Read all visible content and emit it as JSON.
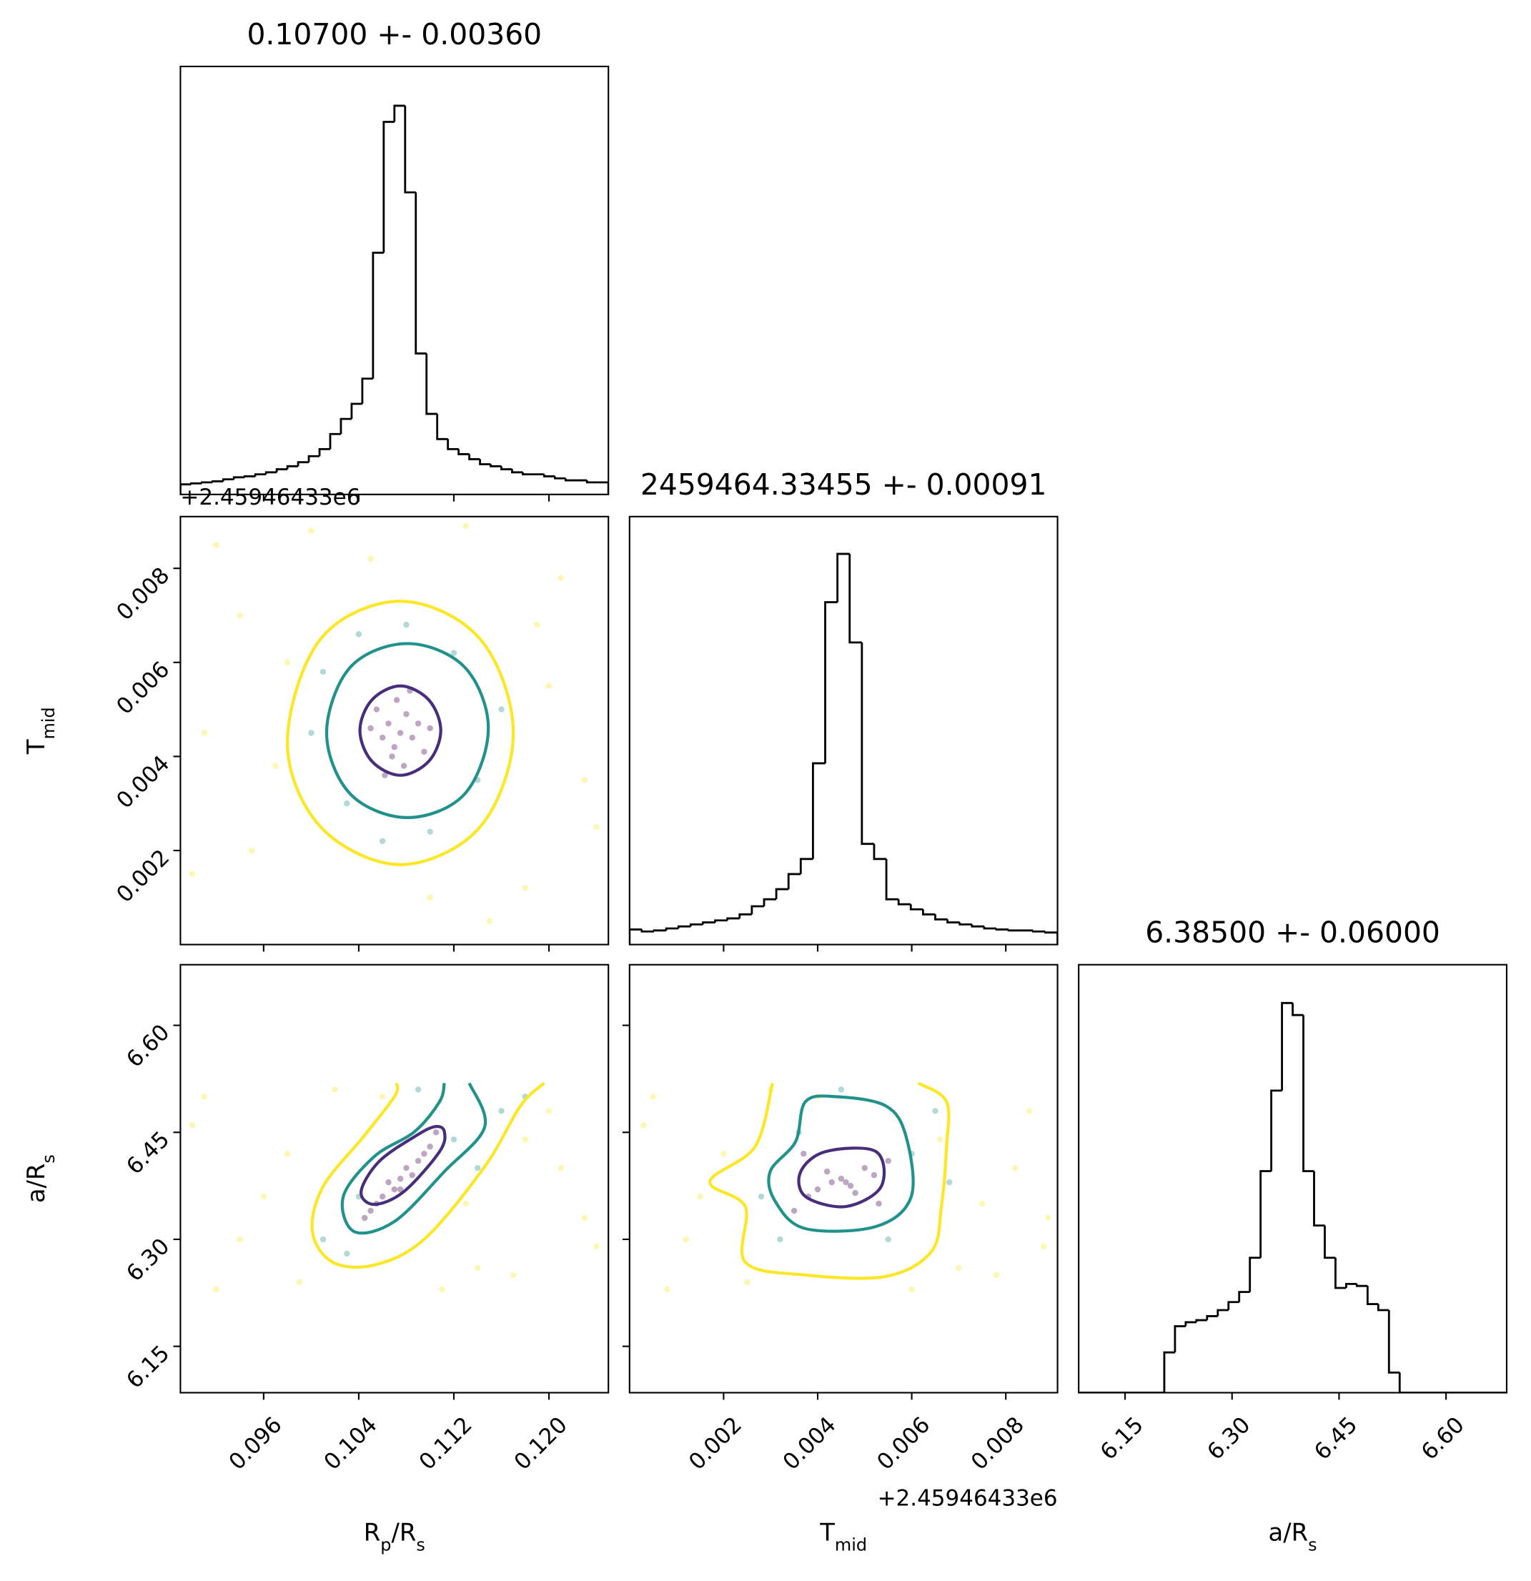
{
  "chart_data": [
    {
      "type": "histogram",
      "title": "0.10700 +- 0.00360",
      "color": "#000000",
      "bins": [
        0.089,
        0.0899,
        0.0908,
        0.0917,
        0.0926,
        0.0935,
        0.0944,
        0.0953,
        0.0962,
        0.0971,
        0.098,
        0.0989,
        0.0998,
        0.1007,
        0.1016,
        0.1025,
        0.1034,
        0.1043,
        0.1052,
        0.1061,
        0.107,
        0.1079,
        0.1088,
        0.1097,
        0.1106,
        0.1115,
        0.1124,
        0.1133,
        0.1142,
        0.1151,
        0.116,
        0.1169,
        0.1178,
        0.1187,
        0.1196,
        0.1205,
        0.1214,
        0.1223,
        0.1232,
        0.1241,
        0.125
      ],
      "values": [
        10,
        11,
        12,
        13,
        15,
        17,
        18,
        20,
        22,
        25,
        28,
        32,
        38,
        45,
        60,
        75,
        90,
        115,
        240,
        370,
        386,
        300,
        140,
        80,
        55,
        45,
        40,
        35,
        30,
        28,
        25,
        22,
        20,
        20,
        18,
        16,
        14,
        14,
        12,
        12
      ],
      "xlim": [
        0.089,
        0.125
      ],
      "ylim": [
        0,
        425
      ],
      "xticks": [
        0.096,
        0.104,
        0.112,
        0.12
      ],
      "xticklabels": false
    },
    {
      "type": "scatter",
      "color_levels": true,
      "xlim": [
        0.089,
        0.125
      ],
      "ylim": [
        0,
        0.0091
      ],
      "xticks": [
        0.096,
        0.104,
        0.112,
        0.12
      ],
      "xticklabels": false,
      "yticks": [
        0.002,
        0.004,
        0.006,
        0.008
      ],
      "yticklabels": true,
      "ylabel": [
        {
          "t": "T"
        },
        {
          "t": "mid",
          "sub": true
        }
      ],
      "y_offset_text": "+2.45946433e6",
      "series": [
        {
          "color": "#fde725",
          "x": [
            0.092,
            0.095,
            0.098,
            0.121,
            0.123,
            0.118,
            0.091,
            0.1,
            0.115,
            0.12,
            0.094,
            0.11,
            0.105,
            0.124,
            0.097,
            0.113,
            0.09,
            0.119
          ],
          "y": [
            0.0085,
            0.002,
            0.006,
            0.0078,
            0.0035,
            0.0012,
            0.0045,
            0.0088,
            0.0005,
            0.0055,
            0.007,
            0.001,
            0.0082,
            0.0025,
            0.0038,
            0.0089,
            0.0015,
            0.0068
          ]
        },
        {
          "color": "#21918c",
          "x": [
            0.101,
            0.103,
            0.112,
            0.114,
            0.108,
            0.106,
            0.1,
            0.116,
            0.11,
            0.104
          ],
          "y": [
            0.0058,
            0.003,
            0.0062,
            0.0035,
            0.0068,
            0.0022,
            0.0045,
            0.005,
            0.0024,
            0.0066
          ]
        },
        {
          "color": "#440154",
          "x": [
            0.1075,
            0.1065,
            0.1085,
            0.107,
            0.108,
            0.106,
            0.109,
            0.1055,
            0.1095,
            0.1072,
            0.1078,
            0.1068,
            0.1083,
            0.105,
            0.11,
            0.1062
          ],
          "y": [
            0.0045,
            0.0047,
            0.0044,
            0.0042,
            0.0049,
            0.0044,
            0.0047,
            0.005,
            0.0041,
            0.0052,
            0.0038,
            0.004,
            0.0054,
            0.0046,
            0.0046,
            0.0036
          ]
        }
      ],
      "contours": [
        {
          "color": "#fde725",
          "closed": true,
          "x": [
            0.117,
            0.1142,
            0.1075,
            0.1008,
            0.098,
            0.1008,
            0.1075,
            0.1142
          ],
          "y": [
            0.0045,
            0.0065,
            0.0073,
            0.0065,
            0.0043,
            0.0025,
            0.0017,
            0.0025
          ]
        },
        {
          "color": "#21918c",
          "closed": true,
          "x": [
            0.1149,
            0.1129,
            0.1081,
            0.1033,
            0.1013,
            0.1033,
            0.1081,
            0.1129
          ],
          "y": [
            0.0046,
            0.0059,
            0.0064,
            0.0059,
            0.0045,
            0.0032,
            0.0027,
            0.0032
          ]
        },
        {
          "color": "#472d7b",
          "closed": true,
          "x": [
            0.1109,
            0.1099,
            0.1075,
            0.1051,
            0.1041,
            0.1051,
            0.1075,
            0.1099
          ],
          "y": [
            0.00455,
            0.0052,
            0.0055,
            0.0052,
            0.00455,
            0.0039,
            0.0036,
            0.0039
          ]
        }
      ]
    },
    {
      "type": "histogram",
      "title": "2459464.33455 +- 0.00091",
      "color": "#000000",
      "bins": [
        0,
        0.00026,
        0.00052,
        0.00078,
        0.00104,
        0.0013,
        0.00156,
        0.00182,
        0.00208,
        0.00234,
        0.0026,
        0.00286,
        0.00312,
        0.00338,
        0.00364,
        0.0039,
        0.00416,
        0.00442,
        0.00468,
        0.00494,
        0.0052,
        0.00546,
        0.00572,
        0.00598,
        0.00624,
        0.0065,
        0.00676,
        0.00702,
        0.00728,
        0.00754,
        0.0078,
        0.00806,
        0.00832,
        0.00858,
        0.00884,
        0.0091
      ],
      "values": [
        15,
        13,
        14,
        16,
        18,
        20,
        22,
        24,
        26,
        30,
        38,
        45,
        55,
        70,
        85,
        180,
        340,
        388,
        300,
        100,
        85,
        45,
        40,
        35,
        30,
        25,
        22,
        20,
        18,
        16,
        15,
        14,
        14,
        13,
        12
      ],
      "xlim": [
        0,
        0.0091
      ],
      "ylim": [
        0,
        425
      ],
      "xticks": [
        0.002,
        0.004,
        0.006,
        0.008
      ],
      "xticklabels": false
    },
    {
      "type": "scatter",
      "xlim": [
        0.089,
        0.125
      ],
      "ylim": [
        6.085,
        6.685
      ],
      "xticks": [
        0.096,
        0.104,
        0.112,
        {
          "value": 0.12,
          "label": "0.120"
        }
      ],
      "xticklabels": true,
      "yticks": [
        6.15,
        {
          "value": 6.3,
          "label": "6.30"
        },
        6.45,
        {
          "value": 6.6,
          "label": "6.60"
        }
      ],
      "yticklabels": true,
      "xlabel": [
        {
          "t": "R"
        },
        {
          "t": "p",
          "sub": true
        },
        {
          "t": "/R"
        },
        {
          "t": "s",
          "sub": true
        }
      ],
      "ylabel": [
        {
          "t": "a/R"
        },
        {
          "t": "s",
          "sub": true
        }
      ],
      "series": [
        {
          "color": "#fde725",
          "x": [
            0.091,
            0.094,
            0.098,
            0.12,
            0.123,
            0.117,
            0.092,
            0.102,
            0.114,
            0.121,
            0.096,
            0.111,
            0.106,
            0.124,
            0.099,
            0.113,
            0.09,
            0.118
          ],
          "y": [
            6.5,
            6.3,
            6.42,
            6.48,
            6.33,
            6.25,
            6.23,
            6.51,
            6.26,
            6.4,
            6.36,
            6.23,
            6.5,
            6.29,
            6.24,
            6.35,
            6.46,
            6.44
          ]
        },
        {
          "color": "#21918c",
          "x": [
            0.104,
            0.116,
            0.112,
            0.101,
            0.109,
            0.114,
            0.103,
            0.118
          ],
          "y": [
            6.36,
            6.48,
            6.44,
            6.3,
            6.51,
            6.4,
            6.28,
            6.5
          ]
        },
        {
          "color": "#440154",
          "x": [
            0.1075,
            0.106,
            0.109,
            0.105,
            0.11,
            0.107,
            0.108,
            0.1045,
            0.1105,
            0.1065,
            0.1085,
            0.1055,
            0.1095,
            0.1075
          ],
          "y": [
            6.385,
            6.36,
            6.41,
            6.34,
            6.43,
            6.37,
            6.4,
            6.33,
            6.45,
            6.38,
            6.39,
            6.35,
            6.42,
            6.37
          ]
        }
      ],
      "contours": [
        {
          "color": "#fde725",
          "closed": false,
          "x": [
            0.1196,
            0.1176,
            0.1146,
            0.1095,
            0.1053,
            0.1018,
            0.1001,
            0.101,
            0.1044,
            0.107,
            0.1072
          ],
          "y": [
            6.519,
            6.487,
            6.402,
            6.3,
            6.264,
            6.268,
            6.311,
            6.374,
            6.444,
            6.5,
            6.519
          ]
        },
        {
          "color": "#21918c",
          "closed": false,
          "x": [
            0.1133,
            0.1146,
            0.1112,
            0.107,
            0.1036,
            0.1027,
            0.1053,
            0.1087,
            0.1108,
            0.1112
          ],
          "y": [
            6.519,
            6.458,
            6.395,
            6.325,
            6.311,
            6.36,
            6.416,
            6.451,
            6.493,
            6.519
          ]
        },
        {
          "color": "#472d7b",
          "closed": true,
          "x": [
            0.1112,
            0.1108,
            0.1078,
            0.1053,
            0.1042,
            0.1057,
            0.1087,
            0.1104
          ],
          "y": [
            6.451,
            6.423,
            6.367,
            6.349,
            6.367,
            6.409,
            6.444,
            6.458
          ]
        }
      ]
    },
    {
      "type": "scatter",
      "xlim": [
        0,
        0.0091
      ],
      "ylim": [
        6.085,
        6.685
      ],
      "xticks": [
        0.002,
        0.004,
        0.006,
        0.008
      ],
      "xticklabels": true,
      "yticks": [
        6.15,
        6.3,
        6.45,
        6.6
      ],
      "yticklabels": false,
      "xlabel": [
        {
          "t": "T"
        },
        {
          "t": "mid",
          "sub": true
        }
      ],
      "x_offset_text": "+2.45946433e6",
      "series": [
        {
          "color": "#fde725",
          "x": [
            0.0005,
            0.0012,
            0.002,
            0.0085,
            0.0089,
            0.0078,
            0.0008,
            0.003,
            0.007,
            0.0082,
            0.0015,
            0.006,
            0.004,
            0.0088,
            0.0025,
            0.0075,
            0.0003,
            0.0066
          ],
          "y": [
            6.5,
            6.3,
            6.42,
            6.48,
            6.33,
            6.25,
            6.23,
            6.51,
            6.26,
            6.4,
            6.36,
            6.23,
            6.5,
            6.29,
            6.24,
            6.35,
            6.46,
            6.44
          ]
        },
        {
          "color": "#21918c",
          "x": [
            0.0028,
            0.0065,
            0.006,
            0.0032,
            0.0045,
            0.0055,
            0.0036,
            0.0068
          ],
          "y": [
            6.36,
            6.48,
            6.42,
            6.3,
            6.51,
            6.3,
            6.45,
            6.38
          ]
        },
        {
          "color": "#440154",
          "x": [
            0.0045,
            0.004,
            0.005,
            0.0038,
            0.0052,
            0.0043,
            0.0047,
            0.0035,
            0.0055,
            0.0042,
            0.0048,
            0.0037,
            0.0053,
            0.0046
          ],
          "y": [
            6.385,
            6.37,
            6.4,
            6.36,
            6.39,
            6.38,
            6.375,
            6.34,
            6.41,
            6.395,
            6.365,
            6.42,
            6.35,
            6.38
          ]
        }
      ],
      "contours": [
        {
          "color": "#fde725",
          "closed": false,
          "x": [
            0.00614,
            0.00674,
            0.00674,
            0.00663,
            0.00642,
            0.00545,
            0.00374,
            0.00246,
            0.00246,
            0.00171,
            0.00267,
            0.00304
          ],
          "y": [
            6.519,
            6.493,
            6.43,
            6.346,
            6.283,
            6.248,
            6.25,
            6.268,
            6.346,
            6.381,
            6.43,
            6.519
          ]
        },
        {
          "color": "#21918c",
          "closed": true,
          "x": [
            0.00374,
            0.00439,
            0.00545,
            0.00588,
            0.00599,
            0.00524,
            0.00374,
            0.0031,
            0.00299,
            0.00353
          ],
          "y": [
            6.493,
            6.5,
            6.487,
            6.444,
            6.36,
            6.318,
            6.315,
            6.353,
            6.395,
            6.437
          ]
        },
        {
          "color": "#472d7b",
          "closed": true,
          "x": [
            0.00417,
            0.00524,
            0.00535,
            0.0046,
            0.00374,
            0.00364
          ],
          "y": [
            6.423,
            6.423,
            6.374,
            6.346,
            6.36,
            6.395
          ]
        }
      ]
    },
    {
      "type": "histogram",
      "title": "6.38500 +- 0.06000",
      "color": "#000000",
      "bins": [
        6.085,
        6.1,
        6.115,
        6.13,
        6.145,
        6.16,
        6.175,
        6.19,
        6.205,
        6.22,
        6.235,
        6.25,
        6.265,
        6.28,
        6.295,
        6.31,
        6.325,
        6.34,
        6.355,
        6.37,
        6.385,
        6.4,
        6.415,
        6.43,
        6.445,
        6.46,
        6.475,
        6.49,
        6.505,
        6.52,
        6.535,
        6.55,
        6.565,
        6.58,
        6.595,
        6.61,
        6.625,
        6.64,
        6.655,
        6.67,
        6.685
      ],
      "values": [
        0,
        0,
        0,
        0,
        0,
        0,
        0,
        0,
        40,
        66,
        70,
        72,
        76,
        82,
        90,
        100,
        134,
        220,
        300,
        387,
        375,
        220,
        166,
        134,
        104,
        108,
        106,
        88,
        82,
        20,
        0,
        0,
        0,
        0,
        0,
        0,
        0,
        0,
        0,
        0
      ],
      "xlim": [
        6.085,
        6.685
      ],
      "ylim": [
        0,
        425
      ],
      "xticks": [
        6.15,
        {
          "value": 6.3,
          "label": "6.30"
        },
        6.45,
        {
          "value": 6.6,
          "label": "6.60"
        }
      ],
      "xticklabels": true,
      "xlabel": [
        {
          "t": "a/R"
        },
        {
          "t": "s",
          "sub": true
        }
      ]
    }
  ]
}
